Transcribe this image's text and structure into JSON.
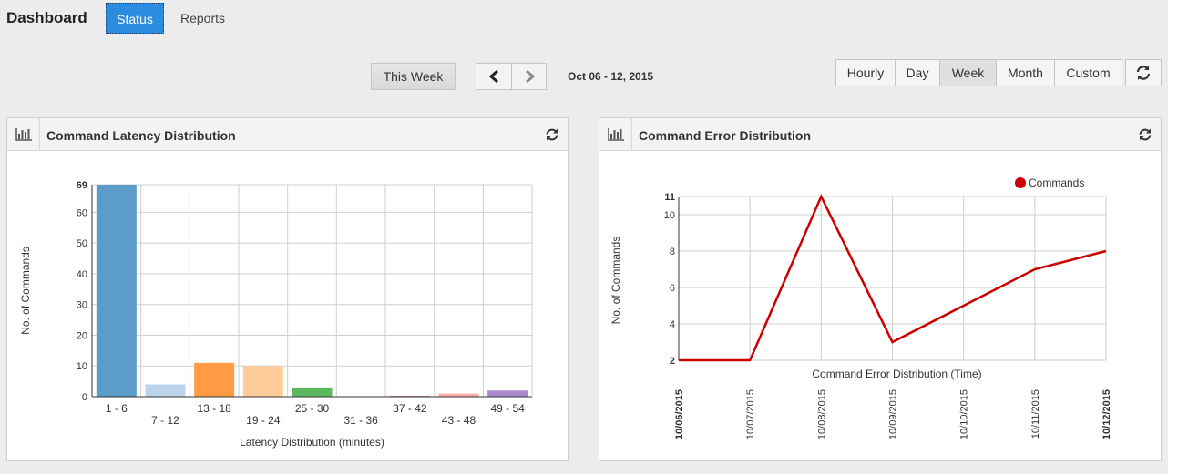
{
  "header": {
    "title": "Dashboard",
    "tabs": [
      {
        "label": "Status",
        "active": true
      },
      {
        "label": "Reports",
        "active": false
      }
    ]
  },
  "toolbar": {
    "this_week_label": "This Week",
    "date_range": "Oct 06 - 12, 2015",
    "ranges": [
      "Hourly",
      "Day",
      "Week",
      "Month",
      "Custom"
    ],
    "active_range": "Week"
  },
  "colors": {
    "accent": "#2b8ce0",
    "line": "#cc0000"
  },
  "latency_panel": {
    "title": "Command Latency Distribution"
  },
  "error_panel": {
    "title": "Command Error Distribution"
  },
  "chart_data": [
    {
      "type": "bar",
      "title": "",
      "xlabel": "Latency Distribution (minutes)",
      "ylabel": "No. of Commands",
      "categories": [
        "1 - 6",
        "7 - 12",
        "13 - 18",
        "19 - 24",
        "25 - 30",
        "31 - 36",
        "37 - 42",
        "43 - 48",
        "49 - 54"
      ],
      "values": [
        69,
        4,
        11,
        10,
        3,
        0,
        0.3,
        1,
        2
      ],
      "colors": [
        "#5b9cc9",
        "#bcd3ec",
        "#ff9a45",
        "#ffcc99",
        "#5cb85c",
        "#9acd7a",
        "#d98c8c",
        "#ffaaa8",
        "#a98bcb"
      ],
      "yticks": [
        0,
        10,
        20,
        30,
        40,
        50,
        60,
        69
      ],
      "ylim": [
        0,
        69
      ],
      "grid": true
    },
    {
      "type": "line",
      "title": "",
      "xlabel": "Command Error Distribution (Time)",
      "ylabel": "No. of Commands",
      "x": [
        "10/06/2015",
        "10/07/2015",
        "10/08/2015",
        "10/09/2015",
        "10/10/2015",
        "10/11/2015",
        "10/12/2015"
      ],
      "series": [
        {
          "name": "Commands",
          "values": [
            2,
            2,
            11,
            3,
            5,
            7,
            8
          ]
        }
      ],
      "yticks": [
        2,
        4,
        6,
        8,
        10,
        11
      ],
      "ylim": [
        2,
        11
      ],
      "legend": "top-right",
      "grid": true
    }
  ]
}
